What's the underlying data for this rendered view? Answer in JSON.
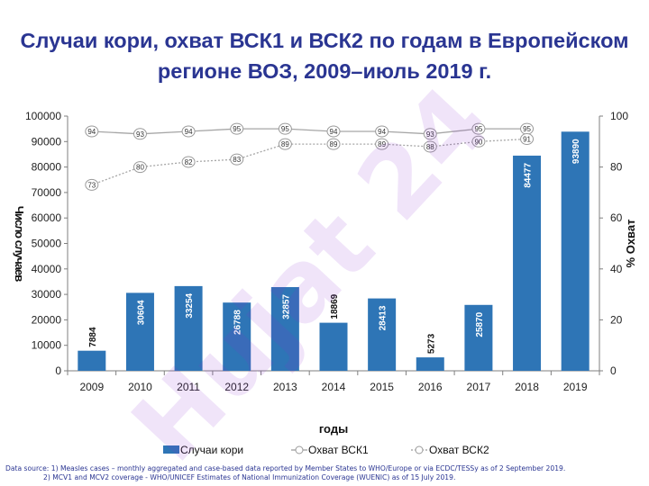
{
  "page": {
    "title_line1": "Случаи кори, охват ВСК1 и ВСК2 по годам в Европейском",
    "title_line2": "регионе ВОЗ, 2009–июль 2019 г.",
    "watermark": "Hujat 24",
    "source_line1": "Data source: 1) Measles cases – monthly aggregated and case-based data reported by Member States to WHO/Europe or via ECDC/TESSy as of  2 September 2019.",
    "source_line2": "2) MCV1 and MCV2 coverage - WHO/UNICEF Estimates of National Immunization Coverage (WUENIC)  as of 15 July 2019."
  },
  "colors": {
    "bar": "#2e75b6",
    "line": "#a6a6a6",
    "title": "#2a3592",
    "watermark": "#8b2fd0"
  },
  "chart_data": {
    "type": "bar",
    "categories": [
      "2009",
      "2010",
      "2011",
      "2012",
      "2013",
      "2014",
      "2015",
      "2016",
      "2017",
      "2018",
      "2019"
    ],
    "xlabel": "годы",
    "ylabel": "Число случаев",
    "y2label": "% Охват",
    "ylim": [
      0,
      100000
    ],
    "y2lim": [
      0,
      100
    ],
    "y_ticks": [
      "0",
      "10000",
      "20000",
      "30000",
      "40000",
      "50000",
      "60000",
      "70000",
      "80000",
      "90000",
      "100000"
    ],
    "y2_ticks": [
      "0",
      "20",
      "40",
      "60",
      "80",
      "100"
    ],
    "grid": false,
    "legend_position": "bottom",
    "series": [
      {
        "name": "Случаи кори",
        "kind": "bar",
        "axis": "left",
        "values": [
          7884,
          30604,
          33254,
          26788,
          32857,
          18869,
          28413,
          5273,
          25870,
          84477,
          93890
        ]
      },
      {
        "name": "Охват ВСК1",
        "kind": "line",
        "axis": "right",
        "values": [
          94,
          93,
          94,
          95,
          95,
          94,
          94,
          93,
          95,
          95,
          null
        ]
      },
      {
        "name": "Охват ВСК2",
        "kind": "line",
        "axis": "right",
        "values": [
          73,
          80,
          82,
          83,
          89,
          89,
          89,
          88,
          90,
          91,
          null
        ]
      }
    ]
  }
}
